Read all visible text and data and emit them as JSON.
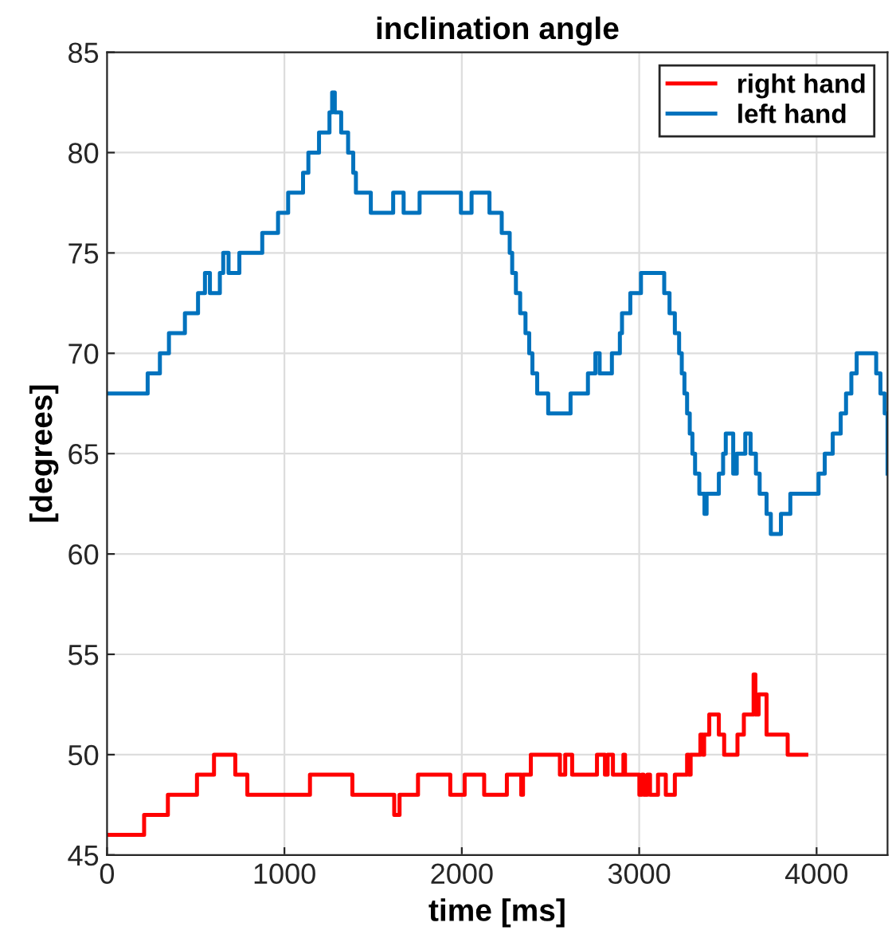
{
  "chart_data": {
    "type": "step",
    "title": "inclination angle",
    "xlabel": "time [ms]",
    "ylabel": "[degrees]",
    "xlim": [
      0,
      4400
    ],
    "xticks": [
      0,
      1000,
      2000,
      3000,
      4000
    ],
    "ylim": [
      45,
      85
    ],
    "yticks": [
      45,
      50,
      55,
      60,
      65,
      70,
      75,
      80,
      85
    ],
    "grid": true,
    "legend": "top right",
    "line_style": "solid",
    "marker": "none",
    "series": [
      {
        "name": "right hand",
        "color": "#ff0000",
        "x": [
          0,
          209,
          343,
          507,
          603,
          723,
          791,
          1144,
          1383,
          1619,
          1649,
          1753,
          1935,
          2016,
          2126,
          2254,
          2335,
          2345,
          2389,
          2553,
          2583,
          2622,
          2762,
          2807,
          2822,
          2852,
          2911,
          2920,
          2926,
          3001,
          3015,
          3025,
          3046,
          3061,
          3106,
          3150,
          3201,
          3270,
          3280,
          3290,
          3300,
          3345,
          3360,
          3366,
          3374,
          3395,
          3449,
          3479,
          3554,
          3590,
          3645,
          3655,
          3673,
          3703,
          3718,
          3837,
          3942
        ],
        "values": [
          46,
          47,
          48,
          49,
          50,
          49,
          48,
          49,
          48,
          47,
          48,
          49,
          48,
          49,
          48,
          49,
          48,
          49,
          50,
          49,
          50,
          49,
          50,
          49,
          50,
          49,
          50,
          49,
          49,
          48,
          49,
          48,
          49,
          48,
          49,
          48,
          49,
          50,
          49,
          50,
          50,
          51,
          50,
          51,
          51,
          52,
          51,
          50,
          51,
          52,
          54,
          52,
          53,
          53,
          51,
          50,
          50
        ]
      },
      {
        "name": "left hand",
        "color": "#0072bd",
        "x": [
          0,
          229,
          298,
          349,
          439,
          513,
          552,
          580,
          636,
          655,
          685,
          746,
          875,
          964,
          1021,
          1105,
          1135,
          1195,
          1254,
          1269,
          1284,
          1299,
          1320,
          1359,
          1388,
          1403,
          1487,
          1613,
          1672,
          1762,
          1995,
          2055,
          2156,
          2225,
          2270,
          2284,
          2305,
          2329,
          2359,
          2380,
          2398,
          2425,
          2487,
          2613,
          2711,
          2753,
          2777,
          2846,
          2891,
          2903,
          2950,
          3010,
          3141,
          3171,
          3201,
          3225,
          3240,
          3255,
          3270,
          3285,
          3300,
          3315,
          3339,
          3368,
          3380,
          3449,
          3473,
          3488,
          3530,
          3550,
          3568,
          3598,
          3628,
          3658,
          3679,
          3718,
          3742,
          3799,
          3852,
          4011,
          4046,
          4091,
          4136,
          4166,
          4196,
          4226,
          4336,
          4360,
          4384,
          4400
        ],
        "values": [
          68,
          69,
          70,
          71,
          72,
          73,
          74,
          73,
          74,
          75,
          74,
          75,
          76,
          77,
          78,
          79,
          80,
          81,
          82,
          83,
          82,
          82,
          81,
          80,
          79,
          78,
          77,
          78,
          77,
          78,
          77,
          78,
          77,
          76,
          75,
          74,
          73,
          72,
          71,
          70,
          69,
          68,
          67,
          68,
          69,
          70,
          69,
          70,
          71,
          72,
          73,
          74,
          73,
          72,
          71,
          70,
          69,
          68,
          67,
          66,
          65,
          64,
          63,
          62,
          63,
          64,
          65,
          66,
          64,
          65,
          65,
          66,
          65,
          64,
          63,
          62,
          61,
          62,
          63,
          64,
          65,
          66,
          67,
          68,
          69,
          70,
          69,
          68,
          67,
          64
        ]
      }
    ]
  }
}
